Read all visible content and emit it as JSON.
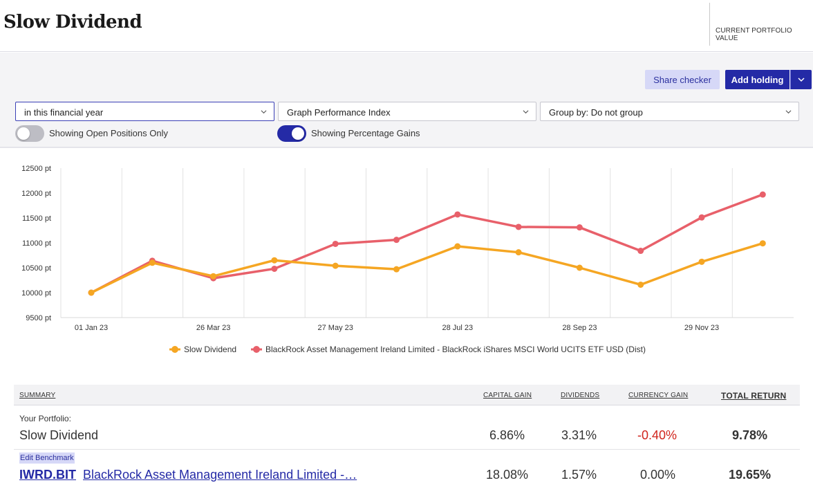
{
  "header": {
    "title": "Slow Dividend",
    "portfolio_value_label": "CURRENT PORTFOLIO VALUE"
  },
  "toolbar": {
    "share_checker_label": "Share checker",
    "add_holding_label": "Add holding"
  },
  "filters": {
    "period": "in this financial year",
    "graph_type": "Graph Performance Index",
    "group_by": "Group by: Do not group",
    "open_positions_label": "Showing Open Positions Only",
    "open_positions_on": false,
    "percentage_gains_label": "Showing Percentage Gains",
    "percentage_gains_on": true
  },
  "colors": {
    "accent": "#242aa6",
    "series_portfolio": "#f5a623",
    "series_benchmark": "#e8606a",
    "negative": "#d0241c"
  },
  "chart_data": {
    "type": "line",
    "x": [
      "01 Jan 23",
      "",
      "26 Mar 23",
      "",
      "27 May 23",
      "",
      "28 Jul 23",
      "",
      "28 Sep 23",
      "",
      "29 Nov 23",
      ""
    ],
    "x_tick_labels": [
      "01 Jan 23",
      "26 Mar 23",
      "27 May 23",
      "28 Jul 23",
      "28 Sep 23",
      "29 Nov 23"
    ],
    "y_tick_labels": [
      "12500 pt",
      "12000 pt",
      "11500 pt",
      "11000 pt",
      "10500 pt",
      "10000 pt",
      "9500 pt"
    ],
    "ylim": [
      9500,
      12500
    ],
    "grid": "vertical",
    "legend_position": "bottom",
    "series": [
      {
        "name": "Slow Dividend",
        "color": "#f5a623",
        "values": [
          10000,
          10600,
          10330,
          10650,
          10540,
          10470,
          10930,
          10810,
          10500,
          10160,
          10620,
          10990
        ]
      },
      {
        "name": "BlackRock Asset Management Ireland Limited - BlackRock iShares MSCI World UCITS ETF USD (Dist)",
        "color": "#e8606a",
        "values": [
          10000,
          10640,
          10290,
          10480,
          10980,
          11060,
          11570,
          11320,
          11310,
          10840,
          11510,
          11970
        ]
      }
    ]
  },
  "summary": {
    "headers": {
      "summary": "SUMMARY",
      "capital_gain": "CAPITAL GAIN",
      "dividends": "DIVIDENDS",
      "currency_gain": "CURRENCY GAIN",
      "total_return": "TOTAL RETURN"
    },
    "portfolio": {
      "caption": "Your Portfolio:",
      "name": "Slow Dividend",
      "capital_gain": "6.86%",
      "dividends": "3.31%",
      "currency_gain": "-0.40%",
      "total_return": "9.78%"
    },
    "benchmark": {
      "edit_label": "Edit Benchmark",
      "code": "IWRD.BIT",
      "name": "BlackRock Asset Management Ireland Limited -…",
      "capital_gain": "18.08%",
      "dividends": "1.57%",
      "currency_gain": "0.00%",
      "total_return": "19.65%"
    }
  }
}
